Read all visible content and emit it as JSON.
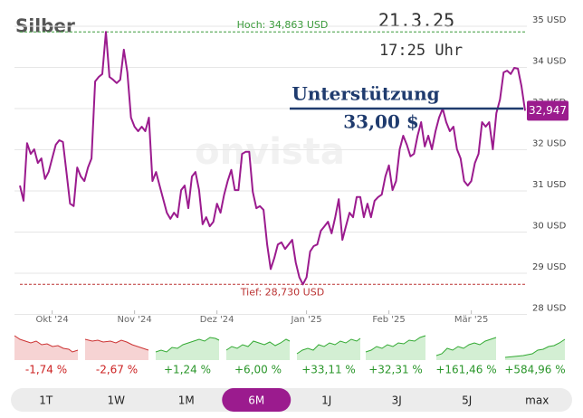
{
  "chart_data": {
    "type": "line",
    "title": "Silber",
    "date": "21.3.25",
    "time": "17:25 Uhr",
    "watermark": "onvista",
    "color": "#9b1b8e",
    "grid": true,
    "ylim": [
      28,
      35
    ],
    "yticks": [
      {
        "value": 28,
        "label": "28 USD"
      },
      {
        "value": 29,
        "label": "29 USD"
      },
      {
        "value": 30,
        "label": "30 USD"
      },
      {
        "value": 31,
        "label": "31 USD"
      },
      {
        "value": 32,
        "label": "32 USD"
      },
      {
        "value": 33,
        "label": "33 USD"
      },
      {
        "value": 34,
        "label": "34 USD"
      },
      {
        "value": 35,
        "label": "35 USD"
      }
    ],
    "high": {
      "value": 34.863,
      "label": "Hoch: 34,863 USD"
    },
    "low": {
      "value": 28.73,
      "label": "Tief: 28,730 USD"
    },
    "current": {
      "value": 32.947,
      "label": "32,947"
    },
    "support": {
      "title": "Unterstützung",
      "value": 33,
      "label": "33,00 $"
    },
    "categories": [
      null,
      null,
      null,
      null,
      null,
      null,
      null,
      null,
      null,
      "Okt '24",
      null,
      null,
      null,
      null,
      null,
      null,
      null,
      null,
      null,
      null,
      null,
      null,
      null,
      null,
      null,
      null,
      null,
      null,
      null,
      null,
      null,
      null,
      "Nov '24",
      null,
      null,
      null,
      null,
      null,
      null,
      null,
      null,
      null,
      null,
      null,
      null,
      null,
      null,
      null,
      null,
      null,
      null,
      null,
      null,
      null,
      null,
      "Dez '24",
      null,
      null,
      null,
      null,
      null,
      null,
      null,
      null,
      null,
      null,
      null,
      null,
      null,
      null,
      null,
      null,
      null,
      null,
      null,
      null,
      null,
      null,
      null,
      null,
      "Jan '25",
      null,
      null,
      null,
      null,
      null,
      null,
      null,
      null,
      null,
      null,
      null,
      null,
      null,
      null,
      null,
      null,
      null,
      null,
      null,
      null,
      null,
      null,
      "Feb '25",
      null,
      null,
      null,
      null,
      null,
      null,
      null,
      null,
      null,
      null,
      null,
      null,
      null,
      null,
      null,
      null,
      null,
      null,
      null,
      null,
      null,
      null,
      "Mär '25",
      null,
      null,
      null,
      null,
      null,
      null,
      null,
      null,
      null,
      null,
      null,
      null,
      null,
      null,
      null
    ],
    "values": [
      31.13,
      30.76,
      32.16,
      31.9,
      32.01,
      31.68,
      31.79,
      31.29,
      31.46,
      31.79,
      32.12,
      32.23,
      32.19,
      31.46,
      30.69,
      30.63,
      31.57,
      31.35,
      31.24,
      31.57,
      31.79,
      33.66,
      33.77,
      33.84,
      34.863,
      33.77,
      33.7,
      33.62,
      33.7,
      34.43,
      33.88,
      32.78,
      32.56,
      32.45,
      32.56,
      32.45,
      32.78,
      31.24,
      31.46,
      31.13,
      30.8,
      30.47,
      30.32,
      30.47,
      30.36,
      31.02,
      31.13,
      30.58,
      31.35,
      31.46,
      31.02,
      30.19,
      30.36,
      30.14,
      30.25,
      30.69,
      30.47,
      30.91,
      31.24,
      31.51,
      31.02,
      31.02,
      31.9,
      31.95,
      31.95,
      30.98,
      30.58,
      30.63,
      30.54,
      29.7,
      29.1,
      29.37,
      29.7,
      29.75,
      29.59,
      29.7,
      29.81,
      29.26,
      28.9,
      28.73,
      28.9,
      29.53,
      29.66,
      29.7,
      30.03,
      30.14,
      30.25,
      29.97,
      30.36,
      30.8,
      29.81,
      30.14,
      30.47,
      30.36,
      30.85,
      30.85,
      30.36,
      30.69,
      30.36,
      30.76,
      30.85,
      30.91,
      31.35,
      31.62,
      31.02,
      31.24,
      32.01,
      32.34,
      32.12,
      31.84,
      31.9,
      32.34,
      32.67,
      32.08,
      32.34,
      32.01,
      32.45,
      32.78,
      33.0,
      32.67,
      32.45,
      32.56,
      32.01,
      31.79,
      31.24,
      31.13,
      31.24,
      31.68,
      31.9,
      32.67,
      32.56,
      32.67,
      32.01,
      32.89,
      33.22,
      33.88,
      33.92,
      33.84,
      33.99,
      33.97,
      33.55,
      32.947
    ],
    "performance": [
      {
        "value": -1.74,
        "label": "-1,74 %"
      },
      {
        "value": -2.67,
        "label": "-2,67 %"
      },
      {
        "value": 1.24,
        "label": "+1,24 %"
      },
      {
        "value": 6.0,
        "label": "+6,00 %"
      },
      {
        "value": 33.11,
        "label": "+33,11 %"
      },
      {
        "value": 32.31,
        "label": "+32,31 %"
      },
      {
        "value": 161.46,
        "label": "+161,46 %"
      },
      {
        "value": 584.96,
        "label": "+584,96 %"
      }
    ],
    "ranges": [
      "1T",
      "1W",
      "1M",
      "6M",
      "1J",
      "3J",
      "5J",
      "max"
    ],
    "active_range": "6M"
  }
}
